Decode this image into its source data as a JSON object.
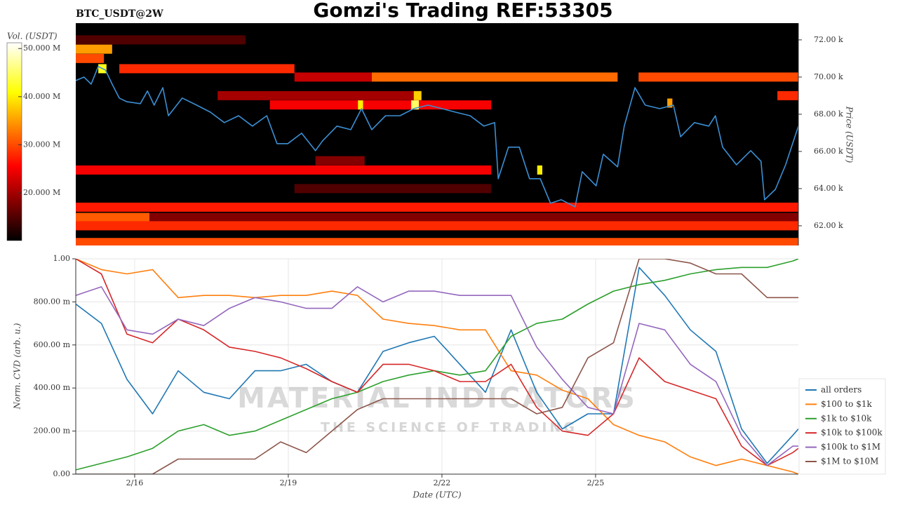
{
  "chart_data": [
    {
      "type": "heatmap",
      "title": "Gomzi's Trading REF:53305",
      "subtitle": "BTC_USDT@2W",
      "y_label": "Price (USDT)",
      "xlim": [
        14.85,
        28.96
      ],
      "ylim": [
        60940,
        72900
      ],
      "yticks": [
        {
          "value": 62000,
          "label": "62.00 k"
        },
        {
          "value": 64000,
          "label": "64.00 k"
        },
        {
          "value": 66000,
          "label": "66.00 k"
        },
        {
          "value": 68000,
          "label": "68.00 k"
        },
        {
          "value": 70000,
          "label": "70.00 k"
        },
        {
          "value": 72000,
          "label": "72.00 k"
        }
      ],
      "colorbar": {
        "label": "Vol. (USDT)",
        "lim": [
          10100000,
          51200000
        ],
        "ticks": [
          {
            "value": 20000000,
            "label": "20.000 M"
          },
          {
            "value": 30000000,
            "label": "30.000 M"
          },
          {
            "value": 40000000,
            "label": "40.000 M"
          },
          {
            "value": 50000000,
            "label": "50.000 M"
          }
        ]
      },
      "cells": [
        {
          "price": 72000,
          "from": 14.85,
          "to": 18.16,
          "volume": 15000000
        },
        {
          "price": 71500,
          "from": 14.85,
          "to": 15.56,
          "volume": 35000000
        },
        {
          "price": 71000,
          "from": 14.85,
          "to": 15.4,
          "volume": 30000000
        },
        {
          "price": 70450,
          "from": 15.7,
          "to": 19.12,
          "volume": 28000000
        },
        {
          "price": 70000,
          "from": 19.12,
          "to": 20.63,
          "volume": 22000000
        },
        {
          "price": 70000,
          "from": 20.63,
          "to": 25.43,
          "volume": 32000000
        },
        {
          "price": 70000,
          "from": 25.84,
          "to": 28.96,
          "volume": 30000000
        },
        {
          "price": 69000,
          "from": 17.62,
          "to": 21.59,
          "volume": 20000000
        },
        {
          "price": 69000,
          "from": 28.55,
          "to": 28.96,
          "volume": 28000000
        },
        {
          "price": 68500,
          "from": 18.64,
          "to": 22.96,
          "volume": 25000000
        },
        {
          "price": 65500,
          "from": 19.53,
          "to": 20.49,
          "volume": 18000000
        },
        {
          "price": 65000,
          "from": 14.85,
          "to": 22.96,
          "volume": 25000000
        },
        {
          "price": 64000,
          "from": 19.12,
          "to": 22.96,
          "volume": 15000000
        },
        {
          "price": 63000,
          "from": 14.85,
          "to": 28.96,
          "volume": 27000000
        },
        {
          "price": 62450,
          "from": 14.85,
          "to": 16.29,
          "volume": 31000000
        },
        {
          "price": 62450,
          "from": 16.29,
          "to": 28.96,
          "volume": 18000000
        },
        {
          "price": 62000,
          "from": 14.85,
          "to": 28.96,
          "volume": 28000000
        },
        {
          "price": 61100,
          "from": 14.85,
          "to": 28.96,
          "volume": 30000000
        },
        {
          "price": 70450,
          "from": 15.29,
          "to": 15.45,
          "volume": 42000000
        },
        {
          "price": 68500,
          "from": 21.4,
          "to": 21.55,
          "volume": 45000000
        },
        {
          "price": 68500,
          "from": 20.36,
          "to": 20.46,
          "volume": 40000000
        },
        {
          "price": 69000,
          "from": 21.45,
          "to": 21.6,
          "volume": 38000000
        },
        {
          "price": 65000,
          "from": 23.86,
          "to": 23.96,
          "volume": 40000000
        },
        {
          "price": 68600,
          "from": 26.4,
          "to": 26.5,
          "volume": 35000000
        }
      ],
      "x": [
        14.85,
        15.01,
        15.15,
        15.29,
        15.43,
        15.56,
        15.7,
        15.84,
        16.11,
        16.25,
        16.38,
        16.55,
        16.66,
        16.93,
        17.21,
        17.48,
        17.75,
        18.03,
        18.3,
        18.58,
        18.78,
        18.99,
        19.26,
        19.53,
        19.67,
        19.95,
        20.22,
        20.43,
        20.63,
        20.9,
        21.18,
        21.45,
        21.73,
        22.0,
        22.27,
        22.55,
        22.82,
        23.03,
        23.1,
        23.3,
        23.51,
        23.71,
        23.92,
        24.12,
        24.33,
        24.6,
        24.74,
        25.01,
        25.15,
        25.43,
        25.56,
        25.77,
        25.97,
        26.25,
        26.52,
        26.66,
        26.93,
        27.21,
        27.34,
        27.48,
        27.75,
        28.03,
        28.23,
        28.3,
        28.51,
        28.71,
        28.96
      ],
      "series": [
        {
          "color": "#3b8fd4",
          "values": [
            69810,
            70000,
            69620,
            70570,
            70380,
            69620,
            68870,
            68680,
            68570,
            69250,
            68490,
            69430,
            67920,
            68870,
            68490,
            68110,
            67550,
            67920,
            67360,
            67920,
            66420,
            66420,
            66980,
            66040,
            66570,
            67360,
            67170,
            68300,
            67170,
            67920,
            67920,
            68300,
            68490,
            68300,
            68110,
            67920,
            67360,
            67550,
            64530,
            66230,
            66230,
            64530,
            64530,
            63210,
            63400,
            63020,
            64910,
            64150,
            65850,
            65170,
            67360,
            69430,
            68490,
            68300,
            68490,
            66790,
            67550,
            67360,
            67920,
            66230,
            65280,
            66040,
            65470,
            63400,
            63960,
            65280,
            67360
          ]
        }
      ]
    },
    {
      "type": "line",
      "x_label": "Date (UTC)",
      "y_label": "Norm. CVD (arb. u.)",
      "xlim": [
        14.85,
        28.96
      ],
      "xticks": [
        {
          "value": 16,
          "label": "2/16"
        },
        {
          "value": 19,
          "label": "2/19"
        },
        {
          "value": 22,
          "label": "2/22"
        },
        {
          "value": 25,
          "label": "2/25"
        }
      ],
      "ylim": [
        0,
        1
      ],
      "yticks": [
        {
          "value": 0,
          "label": "0.00"
        },
        {
          "value": 0.2,
          "label": "200.00 m"
        },
        {
          "value": 0.4,
          "label": "400.00 m"
        },
        {
          "value": 0.6,
          "label": "600.00 m"
        },
        {
          "value": 0.8,
          "label": "800.00 m"
        },
        {
          "value": 1,
          "label": "1.00"
        }
      ],
      "grid": true,
      "legend": "right",
      "annotations": [
        "MATERIAL INDICATORS",
        "THE SCIENCE OF TRADING"
      ],
      "x": [
        14.85,
        15.35,
        15.85,
        16.35,
        16.85,
        17.35,
        17.85,
        18.35,
        18.85,
        19.35,
        19.85,
        20.35,
        20.85,
        21.35,
        21.85,
        22.35,
        22.85,
        23.35,
        23.85,
        24.35,
        24.85,
        25.35,
        25.85,
        26.35,
        26.85,
        27.35,
        27.85,
        28.35,
        28.85,
        28.96
      ],
      "series": [
        {
          "name": "all orders",
          "color": "#1f77b4",
          "values": [
            0.79,
            0.7,
            0.44,
            0.28,
            0.48,
            0.38,
            0.35,
            0.48,
            0.48,
            0.51,
            0.43,
            0.38,
            0.57,
            0.61,
            0.64,
            0.51,
            0.38,
            0.67,
            0.38,
            0.21,
            0.28,
            0.28,
            0.96,
            0.83,
            0.67,
            0.57,
            0.21,
            0.05,
            0.18,
            0.21
          ]
        },
        {
          "name": "$100 to $1k",
          "color": "#ff7f0e",
          "values": [
            1.0,
            0.95,
            0.93,
            0.95,
            0.82,
            0.83,
            0.83,
            0.82,
            0.83,
            0.83,
            0.85,
            0.83,
            0.72,
            0.7,
            0.69,
            0.67,
            0.67,
            0.48,
            0.46,
            0.39,
            0.35,
            0.23,
            0.18,
            0.15,
            0.08,
            0.04,
            0.07,
            0.04,
            0.01,
            0.0
          ]
        },
        {
          "name": "$1k to $10k",
          "color": "#2ca02c",
          "values": [
            0.02,
            0.05,
            0.08,
            0.12,
            0.2,
            0.23,
            0.18,
            0.2,
            0.25,
            0.3,
            0.35,
            0.38,
            0.43,
            0.46,
            0.48,
            0.46,
            0.48,
            0.64,
            0.7,
            0.72,
            0.79,
            0.85,
            0.88,
            0.9,
            0.93,
            0.95,
            0.96,
            0.96,
            0.99,
            1.0
          ]
        },
        {
          "name": "$10k to $100k",
          "color": "#d62728",
          "values": [
            1.0,
            0.93,
            0.65,
            0.61,
            0.72,
            0.67,
            0.59,
            0.57,
            0.54,
            0.49,
            0.43,
            0.38,
            0.51,
            0.51,
            0.48,
            0.43,
            0.43,
            0.51,
            0.31,
            0.2,
            0.18,
            0.28,
            0.54,
            0.43,
            0.39,
            0.35,
            0.13,
            0.04,
            0.1,
            0.12
          ]
        },
        {
          "name": "$100k to $1M",
          "color": "#9467bd",
          "values": [
            0.83,
            0.87,
            0.67,
            0.65,
            0.72,
            0.69,
            0.77,
            0.82,
            0.8,
            0.77,
            0.77,
            0.87,
            0.8,
            0.85,
            0.85,
            0.83,
            0.83,
            0.83,
            0.59,
            0.44,
            0.31,
            0.28,
            0.7,
            0.67,
            0.51,
            0.43,
            0.18,
            0.04,
            0.13,
            0.13
          ]
        },
        {
          "name": "$1M to $10M",
          "color": "#8c564b",
          "values": [
            0,
            0,
            0,
            0,
            0.07,
            0.07,
            0.07,
            0.07,
            0.15,
            0.1,
            0.2,
            0.3,
            0.35,
            0.35,
            0.35,
            0.35,
            0.35,
            0.35,
            0.28,
            0.31,
            0.54,
            0.61,
            1.0,
            1.0,
            0.98,
            0.93,
            0.93,
            0.82,
            0.82,
            0.82
          ]
        }
      ]
    }
  ]
}
